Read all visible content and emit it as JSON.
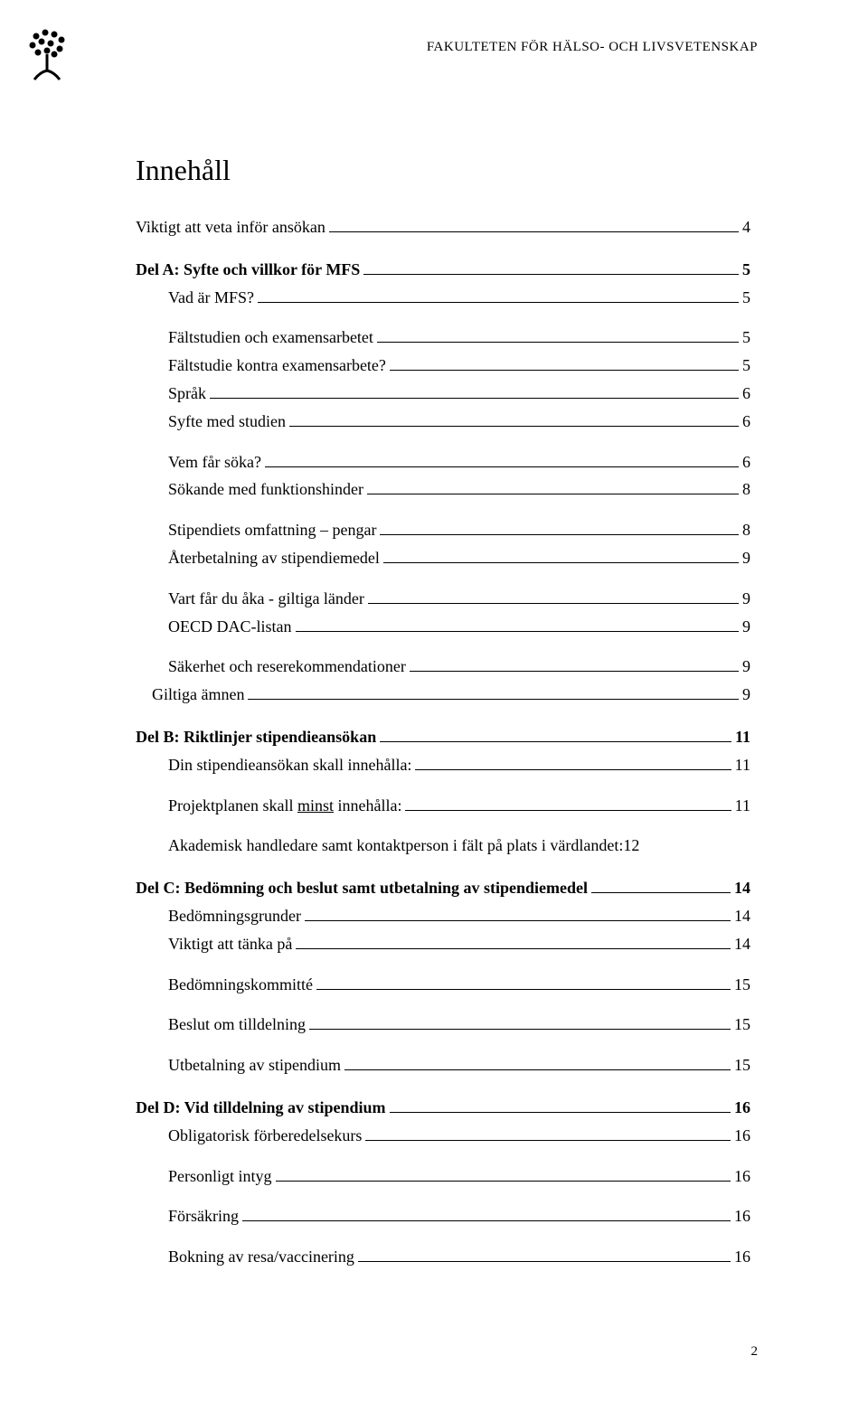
{
  "header": "FAKULTETEN FÖR HÄLSO- OCH LIVSVETENSKAP",
  "title": "Innehåll",
  "footer_page": "2",
  "toc": [
    {
      "label": "Viktigt att veta inför ansökan",
      "page": "4",
      "level": 0,
      "bold": false
    },
    {
      "label": "Del A: Syfte och villkor för MFS",
      "page": "5",
      "level": 0,
      "bold": true
    },
    {
      "label": "Vad är MFS?",
      "page": "5",
      "level": 1,
      "bold": false
    },
    {
      "label": "Fältstudien och examensarbetet",
      "page": "5",
      "level": 1,
      "bold": false
    },
    {
      "label": "Fältstudie kontra examensarbete?",
      "page": "5",
      "level": 2,
      "bold": false
    },
    {
      "label": "Språk",
      "page": "6",
      "level": 2,
      "bold": false
    },
    {
      "label": "Syfte med studien",
      "page": "6",
      "level": 2,
      "bold": false
    },
    {
      "label": "Vem får söka?",
      "page": "6",
      "level": 1,
      "bold": false
    },
    {
      "label": "Sökande med funktionshinder",
      "page": "8",
      "level": 2,
      "bold": false
    },
    {
      "label": "Stipendiets omfattning – pengar",
      "page": "8",
      "level": 1,
      "bold": false
    },
    {
      "label": "Återbetalning av stipendiemedel",
      "page": "9",
      "level": 2,
      "bold": false
    },
    {
      "label": "Vart får du åka - giltiga länder",
      "page": "9",
      "level": 1,
      "bold": false
    },
    {
      "label": "OECD DAC-listan",
      "page": "9",
      "level": 2,
      "bold": false
    },
    {
      "label": "Säkerhet och reserekommendationer",
      "page": "9",
      "level": 1,
      "bold": false
    },
    {
      "label": "Giltiga ämnen",
      "page": "9",
      "level": 1,
      "bold": false,
      "outdent": true
    },
    {
      "label": "Del B: Riktlinjer stipendieansökan",
      "page": "11",
      "level": 0,
      "bold": true
    },
    {
      "label": "Din stipendieansökan skall innehålla:",
      "page": "11",
      "level": 2,
      "bold": false
    },
    {
      "label_pre": "Projektplanen skall ",
      "label_u": "minst",
      "label_post": " innehålla:",
      "page": "11",
      "level": 1,
      "bold": false
    },
    {
      "label": "Akademisk handledare samt kontaktperson i fält på plats i värdlandet:",
      "page": "12",
      "level": 1,
      "bold": false,
      "noleader": true
    },
    {
      "label": "Del C: Bedömning och beslut samt utbetalning av stipendiemedel",
      "page": "14",
      "level": 0,
      "bold": true
    },
    {
      "label": "Bedömningsgrunder",
      "page": "14",
      "level": 2,
      "bold": false
    },
    {
      "label": "Viktigt att tänka på",
      "page": "14",
      "level": 2,
      "bold": false
    },
    {
      "label": "Bedömningskommitté",
      "page": "15",
      "level": 1,
      "bold": false
    },
    {
      "label": "Beslut om tilldelning",
      "page": "15",
      "level": 1,
      "bold": false
    },
    {
      "label": "Utbetalning av stipendium",
      "page": "15",
      "level": 1,
      "bold": false
    },
    {
      "label": "Del D: Vid tilldelning av stipendium",
      "page": "16",
      "level": 0,
      "bold": true
    },
    {
      "label": "Obligatorisk förberedelsekurs",
      "page": "16",
      "level": 2,
      "bold": false
    },
    {
      "label": "Personligt intyg",
      "page": "16",
      "level": 1,
      "bold": false
    },
    {
      "label": "Försäkring",
      "page": "16",
      "level": 1,
      "bold": false
    },
    {
      "label": "Bokning av resa/vaccinering",
      "page": "16",
      "level": 1,
      "bold": false
    }
  ]
}
